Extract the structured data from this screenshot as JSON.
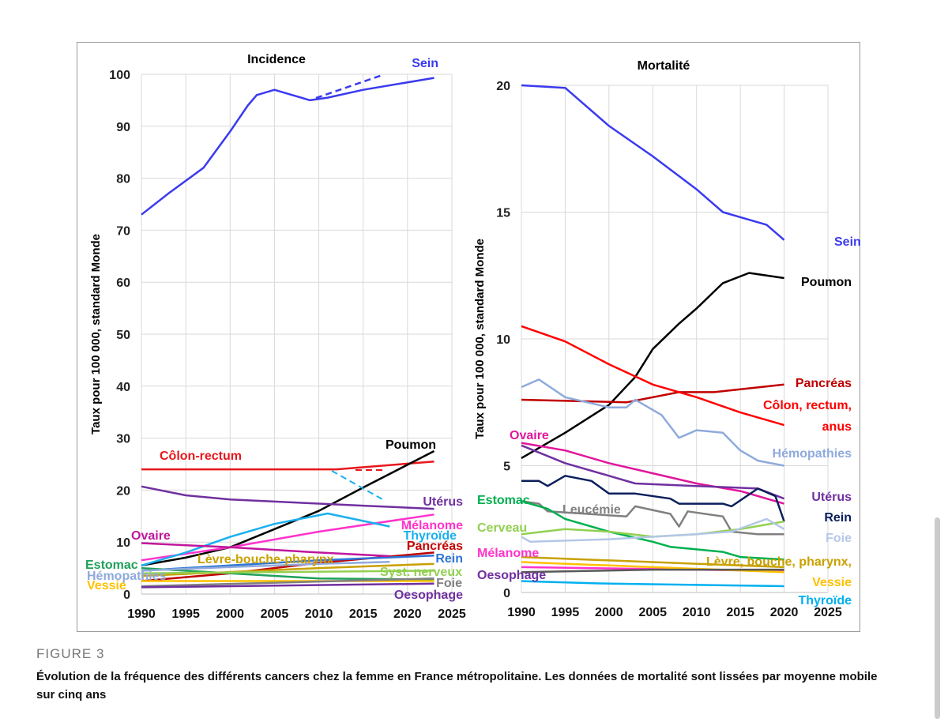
{
  "chart_data": [
    {
      "type": "line",
      "title": "Incidence",
      "ylabel": "Taux pour 100 000, standard Monde",
      "xlim": [
        1990,
        2025
      ],
      "ylim": [
        0,
        100
      ],
      "xticks": [
        "1990",
        "1995",
        "2000",
        "2005",
        "2010",
        "2015",
        "2020",
        "2025"
      ],
      "yticks": [
        "0",
        "10",
        "20",
        "30",
        "40",
        "50",
        "60",
        "70",
        "80",
        "90",
        "100"
      ],
      "series": [
        {
          "name": "Sein",
          "color": "#3a3af0",
          "x": [
            1990,
            1993,
            1997,
            2000,
            2002,
            2003,
            2005,
            2007,
            2009,
            2011,
            2015,
            2023
          ],
          "y": [
            73,
            77,
            82,
            89,
            94,
            96,
            97,
            96,
            95,
            95.5,
            97,
            99.3
          ]
        },
        {
          "name": "Côlon-rectum",
          "color": "#e8171c",
          "x": [
            1990,
            2000,
            2012,
            2023
          ],
          "y": [
            24,
            24,
            24,
            25.5
          ]
        },
        {
          "name": "Poumon",
          "color": "#000000",
          "x": [
            1990,
            1995,
            2000,
            2005,
            2010,
            2015,
            2023
          ],
          "y": [
            5.5,
            7,
            9,
            12.5,
            16,
            20.5,
            27.5
          ]
        },
        {
          "name": "Utérus",
          "color": "#7030a0",
          "x": [
            1990,
            1995,
            2000,
            2005,
            2010,
            2015,
            2023
          ],
          "y": [
            20.7,
            19,
            18.2,
            17.8,
            17.4,
            17,
            16.4
          ]
        },
        {
          "name": "Mélanome",
          "color": "#ff33cc",
          "x": [
            1990,
            2000,
            2010,
            2023
          ],
          "y": [
            6.5,
            9,
            12,
            15.3
          ]
        },
        {
          "name": "Thyroïde",
          "color": "#1ab0ef",
          "x": [
            1990,
            1995,
            2000,
            2005,
            2011,
            2018
          ],
          "y": [
            5.5,
            8,
            11,
            13.5,
            15.5,
            13
          ]
        },
        {
          "name": "Pancréas",
          "color": "#c00000",
          "x": [
            1990,
            2000,
            2010,
            2023
          ],
          "y": [
            2.5,
            4,
            6,
            8
          ]
        },
        {
          "name": "Rein",
          "color": "#2e75d6",
          "x": [
            1990,
            2000,
            2010,
            2023
          ],
          "y": [
            4.5,
            5.5,
            6.5,
            7.4
          ]
        },
        {
          "name": "Ovaire",
          "color": "#c0169c",
          "x": [
            1990,
            2000,
            2010,
            2018
          ],
          "y": [
            9.8,
            9,
            8,
            7.3
          ]
        },
        {
          "name": "Estomac",
          "color": "#1fa05a",
          "x": [
            1990,
            2000,
            2010,
            2023
          ],
          "y": [
            5,
            4,
            3,
            2.8
          ]
        },
        {
          "name": "Hémopathies",
          "color": "#8faadc",
          "x": [
            1990,
            2000,
            2010,
            2018
          ],
          "y": [
            4.5,
            5.2,
            5.8,
            6.2
          ]
        },
        {
          "name": "Lèvre-bouche-pharynx",
          "color": "#c8a000",
          "x": [
            1990,
            2010,
            2023
          ],
          "y": [
            3.5,
            5,
            5.8
          ]
        },
        {
          "name": "Syst. nerveux",
          "color": "#92d050",
          "x": [
            1990,
            2023
          ],
          "y": [
            4,
            4.5
          ]
        },
        {
          "name": "Vessie",
          "color": "#ffc000",
          "x": [
            1990,
            2023
          ],
          "y": [
            2.5,
            2.5
          ]
        },
        {
          "name": "Foie",
          "color": "#808080",
          "x": [
            1990,
            2023
          ],
          "y": [
            1.5,
            3
          ]
        },
        {
          "name": "Oesophage",
          "color": "#7030a0",
          "x": [
            1990,
            2023
          ],
          "y": [
            1.3,
            2
          ]
        }
      ]
    },
    {
      "type": "line",
      "title": "Mortalité",
      "ylabel": "Taux pour 100 000, standard Monde",
      "xlim": [
        1990,
        2025
      ],
      "ylim": [
        0,
        20
      ],
      "xticks": [
        "1990",
        "1995",
        "2000",
        "2005",
        "2010",
        "2015",
        "2020",
        "2025"
      ],
      "yticks": [
        "0",
        "5",
        "10",
        "15",
        "20"
      ],
      "series": [
        {
          "name": "Sein",
          "color": "#3a3af0",
          "x": [
            1990,
            1995,
            2000,
            2005,
            2010,
            2013,
            2015,
            2018,
            2020
          ],
          "y": [
            20,
            19.9,
            18.4,
            17.2,
            15.9,
            15,
            14.8,
            14.5,
            13.9
          ]
        },
        {
          "name": "Poumon",
          "color": "#000000",
          "x": [
            1990,
            1995,
            2000,
            2003,
            2005,
            2008,
            2010,
            2013,
            2016,
            2020
          ],
          "y": [
            5.3,
            6.3,
            7.4,
            8.5,
            9.6,
            10.6,
            11.2,
            12.2,
            12.6,
            12.4
          ]
        },
        {
          "name": "Pancréas",
          "color": "#c00000",
          "x": [
            1990,
            2002,
            2008,
            2012,
            2020
          ],
          "y": [
            7.6,
            7.5,
            7.9,
            7.9,
            8.2
          ]
        },
        {
          "name": "Côlon, rectum, anus",
          "color": "#ff0000",
          "x": [
            1990,
            1995,
            2000,
            2005,
            2010,
            2015,
            2020
          ],
          "y": [
            10.5,
            9.9,
            9,
            8.2,
            7.7,
            7.1,
            6.6
          ]
        },
        {
          "name": "Hémopathies",
          "color": "#8faadc",
          "x": [
            1990,
            1992,
            1995,
            2000,
            2002,
            2003,
            2006,
            2008,
            2010,
            2013,
            2015,
            2017,
            2020
          ],
          "y": [
            8.1,
            8.4,
            7.7,
            7.3,
            7.3,
            7.6,
            7,
            6.1,
            6.4,
            6.3,
            5.6,
            5.2,
            5
          ]
        },
        {
          "name": "Ovaire",
          "color": "#e0169c",
          "x": [
            1990,
            1995,
            2000,
            2005,
            2010,
            2015,
            2020
          ],
          "y": [
            5.9,
            5.6,
            5.1,
            4.7,
            4.3,
            4,
            3.5
          ]
        },
        {
          "name": "Utérus",
          "color": "#7030a0",
          "x": [
            1990,
            1995,
            2000,
            2003,
            2010,
            2017,
            2020
          ],
          "y": [
            5.8,
            5.1,
            4.6,
            4.3,
            4.2,
            4.1,
            3.7
          ]
        },
        {
          "name": "Rein",
          "color": "#0a1f5c",
          "x": [
            1990,
            1992,
            1993,
            1995,
            1998,
            2000,
            2003,
            2007,
            2008,
            2013,
            2014,
            2017,
            2019,
            2020
          ],
          "y": [
            4.4,
            4.4,
            4.2,
            4.6,
            4.4,
            3.9,
            3.9,
            3.7,
            3.5,
            3.5,
            3.4,
            4.1,
            3.8,
            2.8
          ]
        },
        {
          "name": "Leucémie",
          "color": "#808080",
          "x": [
            1990,
            1992,
            1993,
            2002,
            2003,
            2007,
            2008,
            2009,
            2013,
            2014,
            2017,
            2020
          ],
          "y": [
            3.6,
            3.5,
            3.2,
            3,
            3.4,
            3.1,
            2.6,
            3.2,
            3,
            2.4,
            2.3,
            2.3
          ]
        },
        {
          "name": "Estomac",
          "color": "#00b050",
          "x": [
            1990,
            1993,
            1995,
            2000,
            2005,
            2007,
            2010,
            2013,
            2015,
            2020
          ],
          "y": [
            3.6,
            3.3,
            2.9,
            2.4,
            2,
            1.8,
            1.7,
            1.6,
            1.4,
            1.3
          ]
        },
        {
          "name": "Cerveau",
          "color": "#92d050",
          "x": [
            1990,
            1995,
            2000,
            2005,
            2010,
            2015,
            2020
          ],
          "y": [
            2.3,
            2.5,
            2.4,
            2.2,
            2.3,
            2.5,
            2.8
          ]
        },
        {
          "name": "Foie",
          "color": "#b4c7e7",
          "x": [
            1990,
            1991,
            2000,
            2010,
            2014,
            2018,
            2020
          ],
          "y": [
            2.2,
            2,
            2.1,
            2.3,
            2.4,
            2.9,
            2.5
          ]
        },
        {
          "name": "Lèvre, bouche, pharynx,",
          "color": "#c8a000",
          "x": [
            1990,
            2005,
            2020
          ],
          "y": [
            1.4,
            1.2,
            1
          ]
        },
        {
          "name": "Mélanome",
          "color": "#ff33cc",
          "x": [
            1990,
            2020
          ],
          "y": [
            1,
            0.85
          ]
        },
        {
          "name": "Vessie",
          "color": "#ffc000",
          "x": [
            1990,
            2020
          ],
          "y": [
            1.2,
            0.8
          ]
        },
        {
          "name": "Oesophage",
          "color": "#595959",
          "x": [
            1990,
            2005,
            2020
          ],
          "y": [
            0.8,
            0.9,
            0.9
          ]
        },
        {
          "name": "Thyroïde",
          "color": "#00b0f0",
          "x": [
            1990,
            2000,
            2020
          ],
          "y": [
            0.45,
            0.35,
            0.25
          ]
        }
      ]
    }
  ],
  "caption": {
    "figure": "FIGURE 3",
    "text": "Évolution de la fréquence des différents cancers chez la femme en France métropolitaine. Les données de mortalité sont lissées par moyenne mobile sur cinq ans"
  },
  "labels_left": [
    "Sein",
    "Côlon-rectum",
    "Poumon",
    "Utérus",
    "Ovaire",
    "Mélanome",
    "Thyroïde",
    "Pancréas",
    "Rein",
    "Estomac",
    "Lèvre-bouche-pharynx",
    "Hémopathies",
    "Syst. nerveux",
    "Foie",
    "Vessie",
    "Oesophage"
  ],
  "labels_right": [
    "Sein",
    "Poumon",
    "Pancréas",
    "Côlon, rectum,",
    "anus",
    "Hémopathies",
    "Ovaire",
    "Utérus",
    "Rein",
    "Estomac",
    "Leucémie",
    "Cerveau",
    "Foie",
    "Mélanome",
    "Lèvre, bouche, pharynx,",
    "Oesophage",
    "Vessie",
    "Thyroïde"
  ]
}
